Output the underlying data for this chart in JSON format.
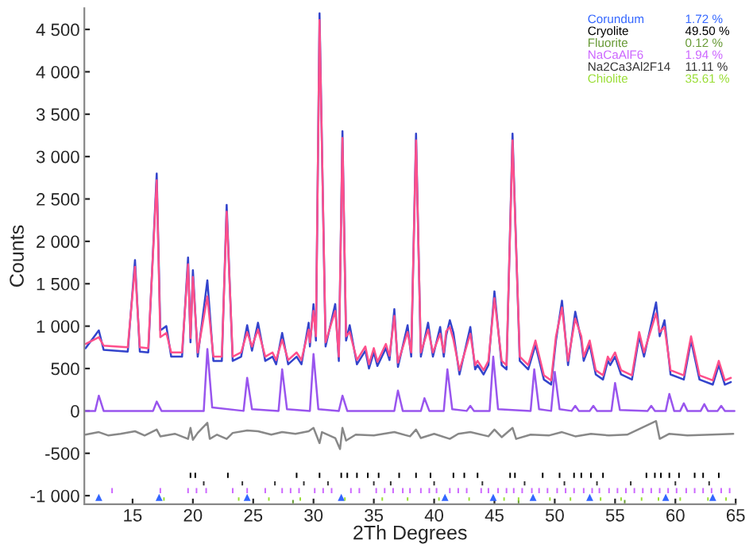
{
  "chart_data": {
    "type": "line",
    "xlabel": "2Th Degrees",
    "ylabel": "Counts",
    "xlim": [
      11,
      65
    ],
    "xticks": [
      15,
      20,
      25,
      30,
      35,
      40,
      45,
      50,
      55,
      60,
      65
    ],
    "ylim": [
      -1100,
      4750
    ],
    "yticks": [
      {
        "value": -1000,
        "label": "-1 000"
      },
      -500,
      0,
      500,
      {
        "value": 1000,
        "label": "1 000"
      },
      {
        "value": 1500,
        "label": "1 500"
      },
      {
        "value": 2000,
        "label": "2 000"
      },
      {
        "value": 2500,
        "label": "2 500"
      },
      {
        "value": 3000,
        "label": "3 000"
      },
      {
        "value": 3500,
        "label": "3 500"
      },
      {
        "value": 4000,
        "label": "4 000"
      },
      {
        "value": 4500,
        "label": "4 500"
      }
    ],
    "grid": false,
    "legend": "top right",
    "annotations": [
      "1.72 %",
      "49.50 %",
      "0.12 %",
      "1.94 %",
      "11.11 %",
      "35.61 %"
    ],
    "series": [
      {
        "color": "#3344cc",
        "x": [
          11.1,
          12.2,
          12.6,
          14.6,
          15.2,
          15.6,
          16.3,
          17.0,
          17.3,
          17.8,
          18.2,
          19.1,
          19.6,
          19.8,
          20.0,
          20.4,
          21.2,
          21.7,
          22.4,
          22.8,
          23.3,
          24.0,
          24.5,
          24.9,
          25.4,
          26.0,
          26.6,
          26.9,
          27.4,
          27.9,
          28.6,
          29.0,
          29.6,
          29.7,
          30.0,
          30.2,
          30.5,
          31.0,
          31.8,
          32.1,
          32.4,
          32.7,
          33.0,
          33.6,
          34.3,
          34.6,
          35.0,
          35.3,
          36.0,
          36.3,
          36.7,
          37.0,
          37.8,
          38.1,
          38.5,
          38.9,
          39.5,
          39.9,
          40.5,
          40.8,
          41.0,
          41.3,
          41.6,
          42.1,
          43.0,
          43.4,
          43.6,
          44.1,
          44.5,
          45.0,
          45.6,
          46.0,
          46.5,
          47.1,
          47.8,
          48.4,
          49.1,
          49.7,
          50.1,
          50.6,
          51.1,
          51.7,
          52.2,
          52.4,
          52.9,
          53.4,
          54.0,
          54.4,
          54.6,
          55.0,
          55.5,
          56.4,
          57.0,
          57.4,
          58.4,
          58.7,
          59.1,
          59.6,
          60.7,
          61.3,
          62.0,
          63.1,
          63.6,
          64.1,
          64.6
        ],
        "values": [
          740,
          950,
          720,
          700,
          1780,
          700,
          690,
          2800,
          950,
          1000,
          640,
          640,
          1810,
          810,
          1660,
          640,
          1540,
          590,
          590,
          2430,
          590,
          640,
          1010,
          710,
          1040,
          590,
          640,
          550,
          920,
          550,
          640,
          550,
          1040,
          760,
          1260,
          830,
          4690,
          760,
          1260,
          590,
          3300,
          830,
          1010,
          550,
          710,
          500,
          690,
          530,
          740,
          600,
          1200,
          520,
          1010,
          640,
          3270,
          640,
          1040,
          640,
          990,
          640,
          890,
          1070,
          920,
          430,
          990,
          490,
          540,
          430,
          540,
          1410,
          540,
          490,
          3270,
          590,
          490,
          780,
          370,
          310,
          830,
          1300,
          540,
          1170,
          830,
          590,
          780,
          430,
          370,
          590,
          540,
          640,
          430,
          370,
          880,
          640,
          1280,
          880,
          1070,
          430,
          370,
          830,
          370,
          310,
          540,
          310,
          340
        ]
      },
      {
        "color": "#ff4f8b",
        "x": [
          11.1,
          12.2,
          12.6,
          14.6,
          15.2,
          15.6,
          16.3,
          17.0,
          17.3,
          17.8,
          18.2,
          19.1,
          19.6,
          19.8,
          20.0,
          20.4,
          21.2,
          21.7,
          22.4,
          22.8,
          23.3,
          24.0,
          24.5,
          24.9,
          25.4,
          26.0,
          26.6,
          26.9,
          27.4,
          27.9,
          28.6,
          29.0,
          29.6,
          29.7,
          30.0,
          30.2,
          30.5,
          31.0,
          31.8,
          32.1,
          32.4,
          32.7,
          33.0,
          33.6,
          34.3,
          34.6,
          35.0,
          35.3,
          36.0,
          36.3,
          36.7,
          37.0,
          37.8,
          38.1,
          38.5,
          38.9,
          39.5,
          39.9,
          40.5,
          40.8,
          41.0,
          41.3,
          41.6,
          42.1,
          43.0,
          43.4,
          43.6,
          44.1,
          44.5,
          45.0,
          45.6,
          46.0,
          46.5,
          47.1,
          47.8,
          48.4,
          49.1,
          49.7,
          50.1,
          50.6,
          51.1,
          51.7,
          52.2,
          52.4,
          52.9,
          53.4,
          54.0,
          54.4,
          54.6,
          55.0,
          55.5,
          56.4,
          57.0,
          57.4,
          58.4,
          58.7,
          59.1,
          59.6,
          60.7,
          61.3,
          62.0,
          63.1,
          63.6,
          64.1,
          64.6
        ],
        "values": [
          790,
          870,
          770,
          750,
          1700,
          750,
          740,
          2720,
          870,
          920,
          690,
          690,
          1730,
          860,
          1580,
          690,
          1350,
          640,
          640,
          2350,
          640,
          690,
          930,
          760,
          960,
          640,
          690,
          600,
          840,
          600,
          690,
          600,
          960,
          810,
          1180,
          880,
          4610,
          810,
          1180,
          640,
          3220,
          880,
          930,
          600,
          760,
          550,
          740,
          580,
          790,
          650,
          1120,
          570,
          930,
          690,
          3190,
          690,
          960,
          690,
          910,
          690,
          940,
          990,
          840,
          480,
          910,
          540,
          590,
          480,
          590,
          1330,
          590,
          540,
          3190,
          640,
          540,
          830,
          420,
          360,
          880,
          1220,
          590,
          1090,
          880,
          640,
          830,
          480,
          420,
          640,
          590,
          690,
          480,
          420,
          930,
          690,
          1150,
          930,
          990,
          480,
          420,
          880,
          420,
          360,
          590,
          360,
          390
        ]
      },
      {
        "color": "#9955ee",
        "x": [
          11.1,
          11.9,
          12.2,
          12.6,
          16.7,
          17.0,
          17.4,
          20.9,
          21.2,
          21.6,
          24.2,
          24.5,
          24.9,
          27.1,
          27.4,
          27.8,
          29.7,
          30.0,
          30.4,
          32.1,
          32.4,
          32.8,
          36.7,
          37.0,
          37.4,
          38.9,
          39.2,
          39.6,
          40.8,
          41.1,
          41.5,
          42.7,
          43.0,
          43.3,
          44.6,
          44.9,
          45.3,
          48.0,
          48.3,
          48.7,
          49.7,
          50.0,
          50.4,
          51.4,
          51.7,
          52.0,
          52.9,
          53.2,
          53.5,
          54.7,
          55.0,
          55.4,
          57.7,
          58.0,
          58.3,
          59.2,
          59.5,
          59.9,
          60.4,
          60.7,
          61.0,
          62.1,
          62.4,
          62.7,
          63.5,
          63.8,
          64.1,
          64.9
        ],
        "values": [
          0,
          0,
          180,
          0,
          0,
          110,
          0,
          0,
          730,
          40,
          0,
          390,
          20,
          0,
          490,
          20,
          0,
          670,
          20,
          0,
          180,
          0,
          0,
          240,
          0,
          0,
          150,
          0,
          0,
          490,
          20,
          0,
          60,
          0,
          0,
          640,
          20,
          0,
          490,
          20,
          0,
          460,
          20,
          0,
          60,
          0,
          0,
          60,
          0,
          0,
          330,
          10,
          0,
          60,
          0,
          0,
          200,
          0,
          0,
          90,
          0,
          0,
          80,
          0,
          0,
          60,
          0,
          0
        ]
      },
      {
        "color": "#888888",
        "x": [
          11.1,
          12.2,
          13.0,
          14.0,
          15.2,
          16.0,
          17.0,
          17.3,
          18.5,
          19.6,
          19.8,
          20.0,
          20.4,
          21.2,
          21.4,
          22.0,
          22.8,
          23.3,
          24.5,
          25.4,
          26.5,
          27.4,
          28.5,
          29.6,
          30.0,
          30.5,
          30.7,
          31.8,
          32.2,
          32.4,
          32.7,
          33.5,
          35.0,
          36.7,
          38.0,
          38.5,
          38.9,
          40.0,
          41.3,
          42.0,
          43.0,
          44.5,
          45.0,
          45.6,
          46.5,
          46.8,
          48.0,
          49.5,
          50.6,
          51.7,
          53.0,
          54.5,
          56.0,
          58.4,
          58.7,
          59.5,
          61.0,
          63.0,
          64.8
        ],
        "values": [
          -280,
          -250,
          -290,
          -270,
          -240,
          -290,
          -220,
          -300,
          -270,
          -330,
          -200,
          -340,
          -260,
          -140,
          -330,
          -280,
          -330,
          -260,
          -230,
          -240,
          -280,
          -250,
          -270,
          -240,
          -200,
          -380,
          -250,
          -320,
          -450,
          -200,
          -350,
          -280,
          -290,
          -250,
          -300,
          -220,
          -320,
          -270,
          -330,
          -270,
          -250,
          -300,
          -220,
          -310,
          -200,
          -330,
          -280,
          -290,
          -250,
          -300,
          -270,
          -290,
          -280,
          -120,
          -330,
          -270,
          -290,
          -280,
          -270
        ]
      },
      {
        "type": "scatter",
        "name": "Corundum",
        "color": "#3366ff",
        "marker": "triangle",
        "x": [
          12.2,
          17.2,
          24.5,
          32.3,
          40.9,
          44.9,
          48.2,
          52.9,
          59.2,
          63.1
        ],
        "values": [
          -1020,
          -1020,
          -1020,
          -1020,
          -1020,
          -1020,
          -1020,
          -1020,
          -1020,
          -1020
        ]
      },
      {
        "type": "bar",
        "name": "Cryolite",
        "color": "#000000",
        "x": [
          19.8,
          20.2,
          22.9,
          28.6,
          30.5,
          32.3,
          32.8,
          33.6,
          34.5,
          35.4,
          37.1,
          38.5,
          39.7,
          41.6,
          42.5,
          43.6,
          46.3,
          46.7,
          49.0,
          50.4,
          51.6,
          52.2,
          53.0,
          54.0,
          57.6,
          58.3,
          58.8,
          59.5,
          60.3,
          61.6,
          62.3,
          63.6
        ],
        "base": [
          -790,
          -790,
          -790,
          -790,
          -790,
          -790,
          -790,
          -790,
          -790,
          -790,
          -790,
          -790,
          -790,
          -790,
          -790,
          -790,
          -790,
          -790,
          -790,
          -790,
          -790,
          -790,
          -790,
          -790,
          -790,
          -790,
          -790,
          -790,
          -790,
          -790,
          -790,
          -790
        ],
        "values": [
          60,
          60,
          60,
          60,
          60,
          60,
          60,
          60,
          60,
          60,
          60,
          60,
          60,
          60,
          60,
          60,
          60,
          60,
          60,
          60,
          60,
          60,
          60,
          60,
          60,
          60,
          60,
          60,
          60,
          60,
          60,
          60
        ]
      },
      {
        "type": "bar",
        "name": "Fluorite",
        "color": "#669933",
        "x": [
          28.3,
          47.0,
          55.8
        ],
        "base": [
          -1090,
          -1090,
          -1090
        ],
        "values": [
          40,
          40,
          40
        ]
      },
      {
        "type": "bar",
        "name": "NaCaAlF6",
        "color": "#cc66ff",
        "x": [
          13.3,
          17.3,
          19.6,
          20.3,
          21.1,
          23.3,
          24.5,
          26.0,
          27.4,
          28.1,
          28.8,
          30.1,
          30.8,
          31.5,
          33.1,
          33.8,
          35.2,
          35.9,
          36.6,
          37.4,
          38.0,
          38.9,
          39.6,
          40.2,
          41.3,
          42.0,
          42.7,
          43.9,
          44.5,
          45.3,
          46.0,
          46.6,
          47.3,
          48.1,
          48.7,
          49.4,
          50.2,
          50.9,
          51.6,
          52.4,
          53.1,
          53.7,
          54.5,
          55.2,
          55.9,
          56.6,
          57.3,
          58.0,
          58.7,
          59.4,
          60.1,
          60.9,
          61.6,
          62.3,
          63.0,
          63.8,
          64.5
        ],
        "base": [
          -970,
          -970,
          -970,
          -970,
          -970,
          -970,
          -970,
          -970,
          -970,
          -970,
          -970,
          -970,
          -970,
          -970,
          -970,
          -970,
          -970,
          -970,
          -970,
          -970,
          -970,
          -970,
          -970,
          -970,
          -970,
          -970,
          -970,
          -970,
          -970,
          -970,
          -970,
          -970,
          -970,
          -970,
          -970,
          -970,
          -970,
          -970,
          -970,
          -970,
          -970,
          -970,
          -970,
          -970,
          -970,
          -970,
          -970,
          -970,
          -970,
          -970,
          -970,
          -970,
          -970,
          -970,
          -970,
          -970,
          -970
        ],
        "values": [
          60,
          60,
          60,
          60,
          60,
          60,
          60,
          60,
          60,
          60,
          60,
          60,
          60,
          60,
          60,
          60,
          60,
          60,
          60,
          60,
          60,
          60,
          60,
          60,
          60,
          60,
          60,
          60,
          60,
          60,
          60,
          60,
          60,
          60,
          60,
          60,
          60,
          60,
          60,
          60,
          60,
          60,
          60,
          60,
          60,
          60,
          60,
          60,
          60,
          60,
          60,
          60,
          60,
          60,
          60,
          60,
          60
        ]
      },
      {
        "type": "bar",
        "name": "Na2Ca3Al2F14",
        "color": "#333333",
        "x": [
          20.9,
          24.1,
          26.8,
          29.2,
          31.2,
          35.0,
          36.4,
          40.0,
          44.0,
          47.5,
          50.8,
          53.5,
          56.3,
          60.0,
          62.8
        ],
        "base": [
          -880,
          -880,
          -880,
          -880,
          -880,
          -880,
          -880,
          -880,
          -880,
          -880,
          -880,
          -880,
          -880,
          -880,
          -880
        ],
        "values": [
          50,
          50,
          50,
          50,
          50,
          50,
          50,
          50,
          50,
          50,
          50,
          50,
          50,
          50,
          50
        ]
      },
      {
        "type": "bar",
        "name": "Chiolite",
        "color": "#99dd33",
        "x": [
          17.6,
          23.8,
          26.3,
          28.9,
          32.6,
          35.7,
          37.8,
          40.4,
          42.9,
          45.8,
          47.0,
          49.6,
          51.3,
          53.8,
          55.5,
          57.2,
          58.6,
          60.4,
          62.7,
          64.2
        ],
        "base": [
          -1060,
          -1060,
          -1060,
          -1060,
          -1060,
          -1060,
          -1060,
          -1060,
          -1060,
          -1060,
          -1060,
          -1060,
          -1060,
          -1060,
          -1060,
          -1060,
          -1060,
          -1060,
          -1060,
          -1060
        ],
        "values": [
          40,
          40,
          40,
          40,
          40,
          40,
          40,
          40,
          40,
          40,
          40,
          40,
          40,
          40,
          40,
          40,
          40,
          40,
          40,
          40
        ]
      }
    ]
  }
}
